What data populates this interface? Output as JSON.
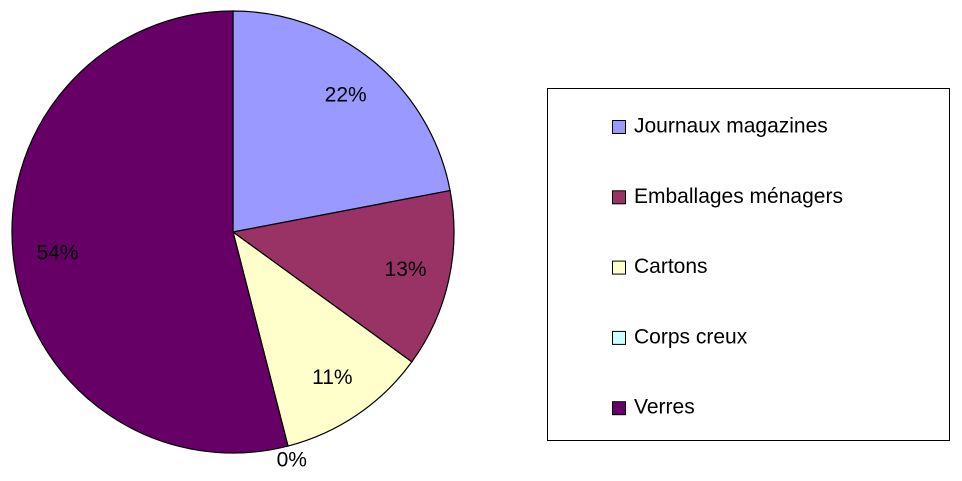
{
  "chart_data": {
    "type": "pie",
    "categories": [
      "Journaux magazines",
      "Emballages ménagers",
      "Cartons",
      "Corps creux",
      "Verres"
    ],
    "values": [
      22,
      13,
      11,
      0,
      54
    ],
    "value_labels": [
      "22%",
      "13%",
      "11%",
      "0%",
      "54%"
    ],
    "colors": [
      "#9999ff",
      "#993366",
      "#ffffcc",
      "#ccffff",
      "#660066"
    ],
    "legend": "right"
  }
}
